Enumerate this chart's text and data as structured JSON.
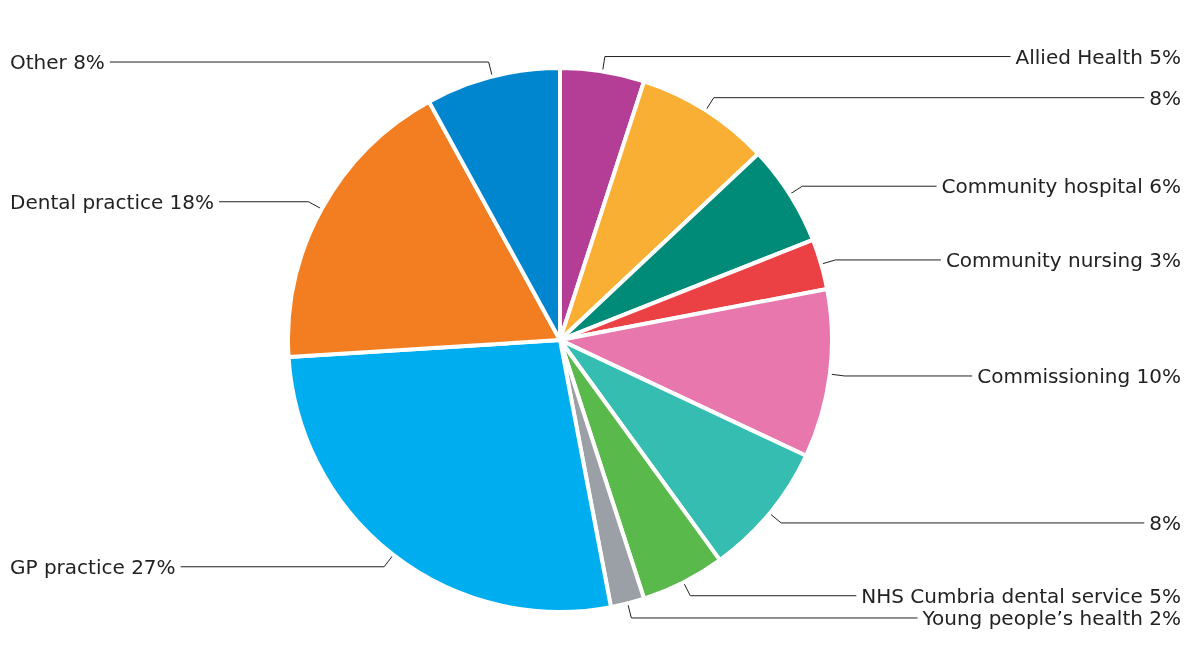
{
  "chart_data": {
    "type": "pie",
    "categories": [
      "Allied Health",
      null,
      "Community hospital",
      "Community nursing",
      "Commissioning",
      null,
      "NHS Cumbria dental service",
      "Young people’s health",
      "GP practice",
      "Dental practice",
      "Other"
    ],
    "values": [
      5,
      8,
      6,
      3,
      10,
      8,
      5,
      2,
      27,
      18,
      8
    ],
    "colors": [
      "#b43e96",
      "#f9ae34",
      "#008a78",
      "#ec4144",
      "#e877ae",
      "#35bdb2",
      "#59b94b",
      "#9aa0a5",
      "#00aeef",
      "#f37e22",
      "#0086cf"
    ],
    "value_labels": [
      "5%",
      "8%",
      "6%",
      "3%",
      "10%",
      "8%",
      "5%",
      "2%",
      "27%",
      "18%",
      "8%"
    ],
    "legend": false
  }
}
